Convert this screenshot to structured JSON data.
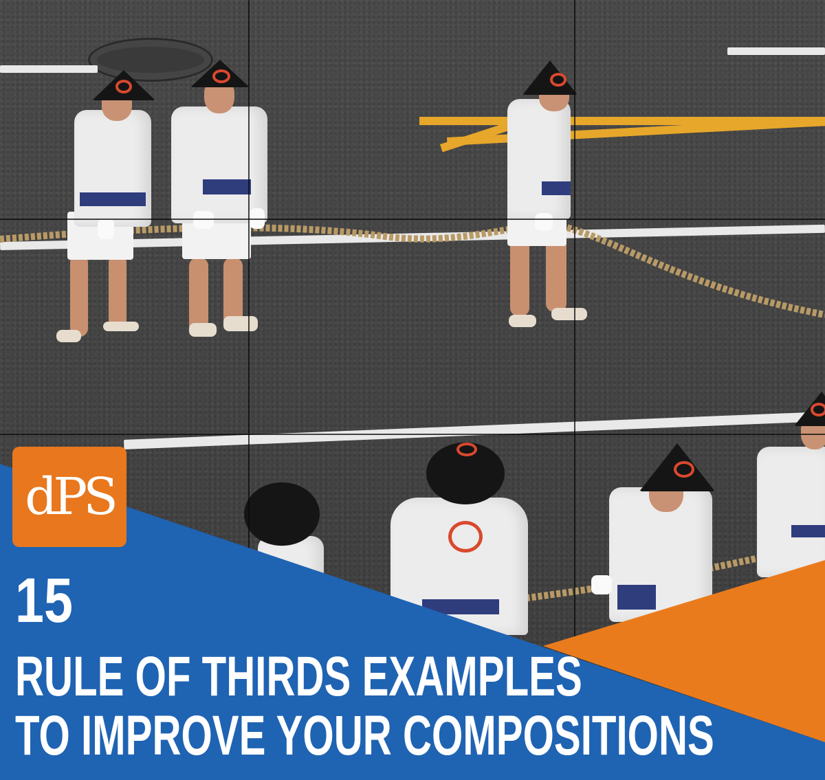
{
  "logo": {
    "text": "dPS",
    "color": "#e8771d"
  },
  "headline": {
    "number": "15",
    "line1": "RULE OF THIRDS EXAMPLES",
    "line2": "TO IMPROVE YOUR COMPOSITIONS"
  },
  "colors": {
    "banner_blue": "#1f63b3",
    "banner_orange": "#ea7b1d",
    "asphalt": "#4a4a4a",
    "road_yellow": "#e7a72a",
    "grid_lines": "#0a0a0a"
  }
}
